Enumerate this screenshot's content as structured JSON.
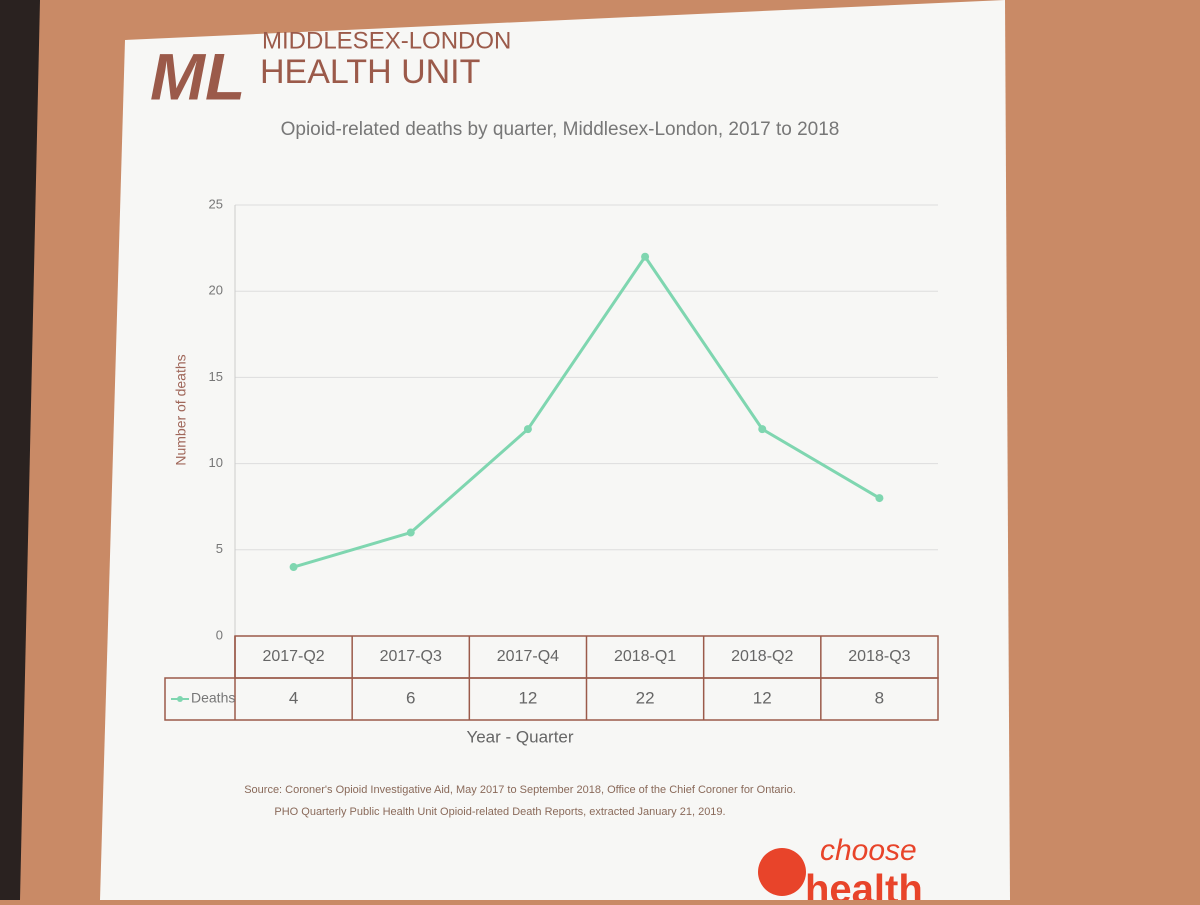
{
  "header": {
    "logo_initials": "ML",
    "org_line1": "MIDDLESEX-LONDON",
    "org_line2": "HEALTH UNIT"
  },
  "chart_data": {
    "type": "line",
    "title": "Opioid-related deaths by quarter, Middlesex-London, 2017 to 2018",
    "x_label": "Year - Quarter",
    "y_label": "Number of deaths",
    "categories": [
      "2017-Q2",
      "2017-Q3",
      "2017-Q4",
      "2018-Q1",
      "2018-Q2",
      "2018-Q3"
    ],
    "series": [
      {
        "name": "Deaths",
        "color": "#7fd6b0",
        "values": [
          4,
          6,
          12,
          22,
          12,
          8
        ]
      }
    ],
    "ylim": [
      0,
      25
    ],
    "yticks": [
      0,
      5,
      10,
      15,
      20,
      25
    ],
    "grid": true,
    "data_table": true
  },
  "footer": {
    "source_lines": [
      "Source: Coroner's Opioid Investigative Aid, May 2017 to September 2018, Office of the Chief Coroner for Ontario.",
      "PHO Quarterly Public Health Unit Opioid-related Death Reports, extracted January 21, 2019."
    ],
    "brand": [
      "choose",
      "health"
    ]
  }
}
